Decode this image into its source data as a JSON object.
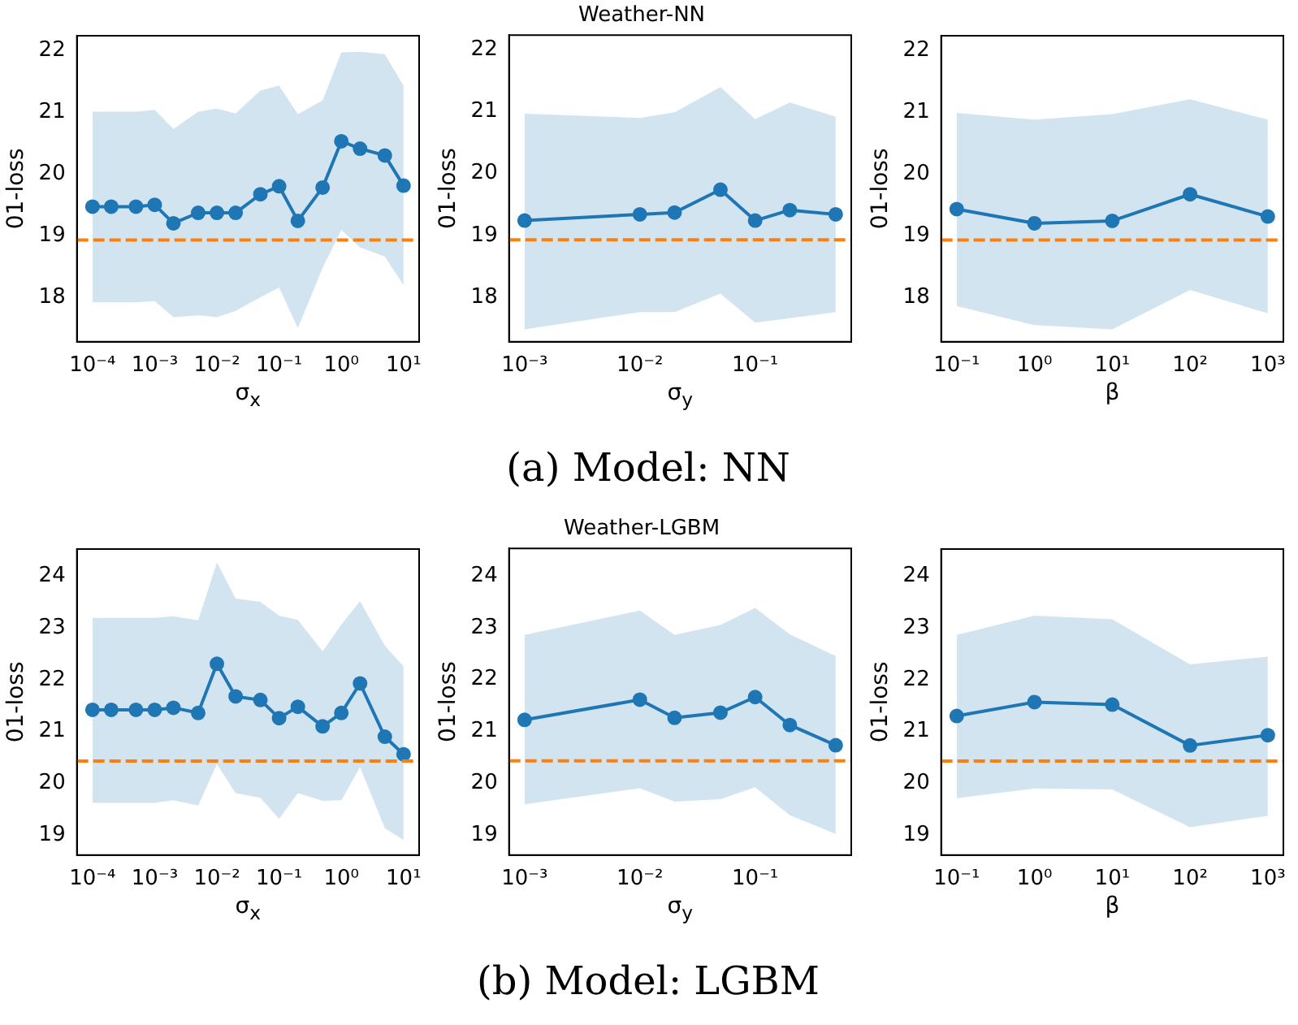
{
  "chart_data": [
    {
      "type": "line",
      "xlabel": "σ$_{x}$",
      "ylabel": "01-loss",
      "log": "x",
      "marker": "circle",
      "xlim": [
        5.62e-05,
        17.8
      ],
      "ylim": [
        17.28,
        22.24
      ],
      "xticks": [
        {
          "value": 0.0001,
          "label": "10⁻⁴"
        },
        {
          "value": 0.001,
          "label": "10⁻³"
        },
        {
          "value": 0.01,
          "label": "10⁻²"
        },
        {
          "value": 0.1,
          "label": "10⁻¹"
        },
        {
          "value": 1,
          "label": "10⁰"
        },
        {
          "value": 10,
          "label": "10¹"
        }
      ],
      "yticks": [
        18,
        19,
        20,
        21,
        22
      ],
      "x": [
        0.0001,
        0.0002,
        0.0005,
        0.001,
        0.002,
        0.005,
        0.01,
        0.02,
        0.05,
        0.1,
        0.2,
        0.5,
        1,
        2,
        5,
        10
      ],
      "series": [
        {
          "color": "#1f77b4",
          "values": [
            19.47,
            19.47,
            19.47,
            19.5,
            19.2,
            19.37,
            19.37,
            19.37,
            19.67,
            19.8,
            19.24,
            19.78,
            20.53,
            20.41,
            20.3,
            19.81
          ],
          "lower": [
            17.92,
            17.92,
            17.92,
            17.94,
            17.68,
            17.71,
            17.68,
            17.78,
            18.0,
            18.16,
            17.5,
            18.48,
            19.09,
            18.81,
            18.66,
            18.2
          ],
          "upper": [
            21.01,
            21.01,
            21.01,
            21.04,
            20.73,
            21.01,
            21.06,
            20.98,
            21.35,
            21.43,
            20.97,
            21.19,
            21.97,
            21.98,
            21.94,
            21.43
          ]
        }
      ],
      "ref_lines": [
        {
          "axis": "y",
          "value": 18.93,
          "color": "#ff7f0e",
          "line_style": "dashed"
        }
      ]
    },
    {
      "type": "line",
      "title": "Weather-NN",
      "xlabel": "σ$_{y}$",
      "ylabel": "01-loss",
      "log": "x",
      "marker": "circle",
      "xlim": [
        0.000733,
        0.682
      ],
      "ylim": [
        17.28,
        22.24
      ],
      "xticks": [
        {
          "value": 0.001,
          "label": "10⁻³"
        },
        {
          "value": 0.01,
          "label": "10⁻²"
        },
        {
          "value": 0.1,
          "label": "10⁻¹"
        }
      ],
      "yticks": [
        18,
        19,
        20,
        21,
        22
      ],
      "x": [
        0.001,
        0.01,
        0.02,
        0.05,
        0.1,
        0.2,
        0.5
      ],
      "series": [
        {
          "color": "#1f77b4",
          "values": [
            19.24,
            19.34,
            19.37,
            19.74,
            19.24,
            19.41,
            19.34
          ],
          "lower": [
            17.48,
            17.76,
            17.76,
            18.06,
            17.59,
            17.66,
            17.76
          ],
          "upper": [
            20.97,
            20.9,
            20.99,
            21.4,
            20.88,
            21.15,
            20.92
          ]
        }
      ],
      "ref_lines": [
        {
          "axis": "y",
          "value": 18.93,
          "color": "#ff7f0e",
          "line_style": "dashed"
        }
      ],
      "annotations": [
        "(a) Model: NN"
      ]
    },
    {
      "type": "line",
      "xlabel": "β",
      "ylabel": "01-loss",
      "log": "x",
      "marker": "circle",
      "xlim": [
        0.0631,
        1585
      ],
      "ylim": [
        17.28,
        22.24
      ],
      "xticks": [
        {
          "value": 0.1,
          "label": "10⁻¹"
        },
        {
          "value": 1,
          "label": "10⁰"
        },
        {
          "value": 10,
          "label": "10¹"
        },
        {
          "value": 100,
          "label": "10²"
        },
        {
          "value": 1000,
          "label": "10³"
        }
      ],
      "yticks": [
        18,
        19,
        20,
        21,
        22
      ],
      "x": [
        0.1,
        1,
        10,
        100,
        1000
      ],
      "series": [
        {
          "color": "#1f77b4",
          "values": [
            19.43,
            19.2,
            19.24,
            19.67,
            19.31
          ],
          "lower": [
            17.86,
            17.55,
            17.48,
            18.12,
            17.74
          ],
          "upper": [
            20.99,
            20.88,
            20.97,
            21.21,
            20.88
          ]
        }
      ],
      "ref_lines": [
        {
          "axis": "y",
          "value": 18.93,
          "color": "#ff7f0e",
          "line_style": "dashed"
        }
      ]
    },
    {
      "type": "line",
      "xlabel": "σ$_{x}$",
      "ylabel": "01-loss",
      "log": "x",
      "marker": "circle",
      "xlim": [
        5.62e-05,
        17.8
      ],
      "ylim": [
        18.61,
        24.53
      ],
      "xticks": [
        {
          "value": 0.0001,
          "label": "10⁻⁴"
        },
        {
          "value": 0.001,
          "label": "10⁻³"
        },
        {
          "value": 0.01,
          "label": "10⁻²"
        },
        {
          "value": 0.1,
          "label": "10⁻¹"
        },
        {
          "value": 1,
          "label": "10⁰"
        },
        {
          "value": 10,
          "label": "10¹"
        }
      ],
      "yticks": [
        19,
        20,
        21,
        22,
        23,
        24
      ],
      "x": [
        0.0001,
        0.0002,
        0.0005,
        0.001,
        0.002,
        0.005,
        0.01,
        0.02,
        0.05,
        0.1,
        0.2,
        0.5,
        1,
        2,
        5,
        10
      ],
      "series": [
        {
          "color": "#1f77b4",
          "values": [
            21.42,
            21.42,
            21.42,
            21.42,
            21.46,
            21.36,
            22.31,
            21.68,
            21.61,
            21.26,
            21.48,
            21.1,
            21.36,
            21.93,
            20.9,
            20.56
          ],
          "lower": [
            19.62,
            19.62,
            19.62,
            19.62,
            19.67,
            19.57,
            20.37,
            19.81,
            19.72,
            19.31,
            19.81,
            19.66,
            19.67,
            20.31,
            19.13,
            18.9
          ],
          "upper": [
            23.2,
            23.2,
            23.2,
            23.2,
            23.23,
            23.15,
            24.27,
            23.57,
            23.51,
            23.24,
            23.16,
            22.55,
            23.07,
            23.52,
            22.66,
            22.26
          ]
        }
      ],
      "ref_lines": [
        {
          "axis": "y",
          "value": 20.43,
          "color": "#ff7f0e",
          "line_style": "dashed"
        }
      ]
    },
    {
      "type": "line",
      "title": "Weather-LGBM",
      "xlabel": "σ$_{y}$",
      "ylabel": "01-loss",
      "log": "x",
      "marker": "circle",
      "xlim": [
        0.000733,
        0.682
      ],
      "ylim": [
        18.61,
        24.53
      ],
      "xticks": [
        {
          "value": 0.001,
          "label": "10⁻³"
        },
        {
          "value": 0.01,
          "label": "10⁻²"
        },
        {
          "value": 0.1,
          "label": "10⁻¹"
        }
      ],
      "yticks": [
        19,
        20,
        21,
        22,
        23,
        24
      ],
      "x": [
        0.001,
        0.01,
        0.02,
        0.05,
        0.1,
        0.2,
        0.5
      ],
      "series": [
        {
          "color": "#1f77b4",
          "values": [
            21.22,
            21.61,
            21.26,
            21.36,
            21.66,
            21.12,
            20.73
          ],
          "lower": [
            19.59,
            19.9,
            19.64,
            19.69,
            19.92,
            19.38,
            19.02
          ],
          "upper": [
            22.86,
            23.33,
            22.86,
            23.05,
            23.38,
            22.87,
            22.45
          ]
        }
      ],
      "ref_lines": [
        {
          "axis": "y",
          "value": 20.43,
          "color": "#ff7f0e",
          "line_style": "dashed"
        }
      ],
      "annotations": [
        "(b) Model: LGBM"
      ]
    },
    {
      "type": "line",
      "xlabel": "β",
      "ylabel": "01-loss",
      "log": "x",
      "marker": "circle",
      "xlim": [
        0.0631,
        1585
      ],
      "ylim": [
        18.61,
        24.53
      ],
      "xticks": [
        {
          "value": 0.1,
          "label": "10⁻¹"
        },
        {
          "value": 1,
          "label": "10⁰"
        },
        {
          "value": 10,
          "label": "10¹"
        },
        {
          "value": 100,
          "label": "10²"
        },
        {
          "value": 1000,
          "label": "10³"
        }
      ],
      "yticks": [
        19,
        20,
        21,
        22,
        23,
        24
      ],
      "x": [
        0.1,
        1,
        10,
        100,
        1000
      ],
      "series": [
        {
          "color": "#1f77b4",
          "values": [
            21.3,
            21.57,
            21.52,
            20.73,
            20.93
          ],
          "lower": [
            19.71,
            19.9,
            19.88,
            19.15,
            19.37
          ],
          "upper": [
            22.87,
            23.24,
            23.17,
            22.3,
            22.45
          ]
        }
      ],
      "ref_lines": [
        {
          "axis": "y",
          "value": 20.43,
          "color": "#ff7f0e",
          "line_style": "dashed"
        }
      ]
    }
  ]
}
